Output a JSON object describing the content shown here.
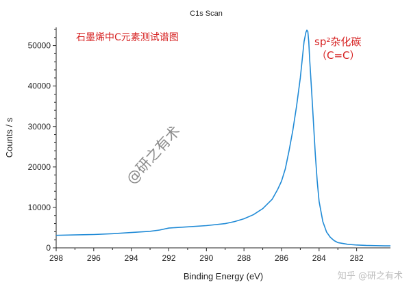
{
  "chart_data": {
    "type": "line",
    "title": "C1s Scan",
    "xlabel": "Binding Energy (eV)",
    "ylabel": "Counts / s",
    "xlim": [
      298,
      280.2
    ],
    "ylim": [
      0,
      54500
    ],
    "x_reversed": true,
    "x_ticks": [
      "298",
      "296",
      "294",
      "292",
      "290",
      "288",
      "286",
      "284",
      "282"
    ],
    "y_ticks": [
      "0",
      "10000",
      "20000",
      "30000",
      "40000",
      "50000"
    ],
    "grid": false,
    "series": [
      {
        "color": "#1f8ad6",
        "x": [
          298,
          297,
          296,
          295,
          294,
          293,
          292.5,
          292,
          291,
          290,
          289,
          288.5,
          288,
          287.5,
          287,
          286.5,
          286.2,
          286,
          285.8,
          285.6,
          285.4,
          285.2,
          285.0,
          284.9,
          284.8,
          284.7,
          284.65,
          284.6,
          284.55,
          284.5,
          284.4,
          284.3,
          284.2,
          284.1,
          284.0,
          283.8,
          283.6,
          283.4,
          283.2,
          283.0,
          282.5,
          282,
          281.5,
          281,
          280.5,
          280.2
        ],
        "y": [
          3100,
          3200,
          3300,
          3500,
          3800,
          4100,
          4400,
          4900,
          5200,
          5500,
          6000,
          6500,
          7200,
          8200,
          9700,
          12000,
          14500,
          16500,
          19500,
          24000,
          29000,
          35000,
          42000,
          46500,
          51000,
          53300,
          53800,
          53500,
          51000,
          46500,
          39000,
          31000,
          23000,
          16500,
          11500,
          6500,
          3900,
          2600,
          1800,
          1300,
          900,
          700,
          600,
          550,
          500,
          500
        ]
      }
    ],
    "annotations": [
      {
        "text": "石墨烯中C元素测试谱图"
      },
      {
        "text": "sp²杂化碳"
      },
      {
        "text": "（C=C）"
      }
    ]
  },
  "watermarks": {
    "diagonal": "@研之有术",
    "source": "知乎 @研之有术"
  },
  "colors": {
    "line": "#1f8ad6",
    "annotation": "#d62020",
    "axis": "#222222"
  }
}
